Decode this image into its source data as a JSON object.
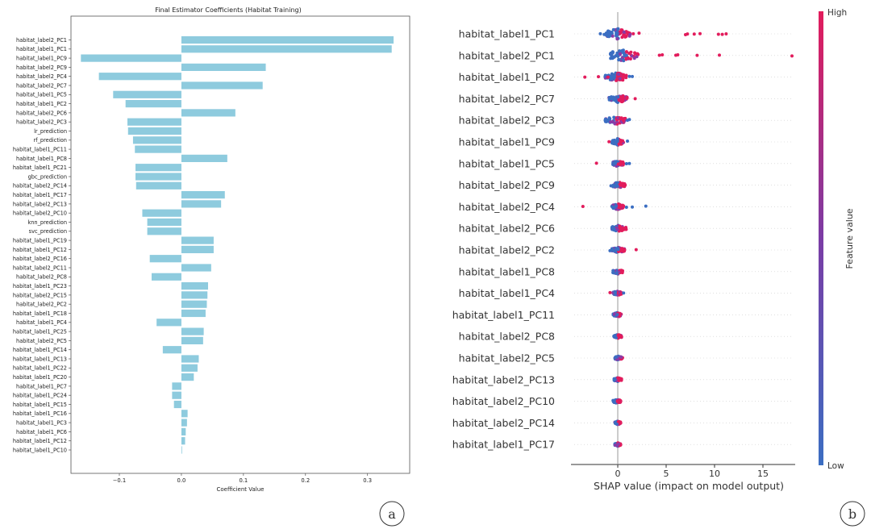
{
  "chart_data": [
    {
      "type": "bar",
      "orientation": "horizontal",
      "panel_label": "a",
      "title": "Final Estimator Coefficients (Habitat Training)",
      "xlabel": "Coefficient Value",
      "ylabel": "",
      "xlim": [
        -0.178,
        0.368
      ],
      "xticks": [
        -0.1,
        0.0,
        0.1,
        0.2,
        0.3
      ],
      "xtick_labels": [
        "−0.1",
        "0.0",
        "0.1",
        "0.2",
        "0.3"
      ],
      "bar_color": "#8ecbde",
      "categories": [
        "habitat_label2_PC1",
        "habitat_label1_PC1",
        "habitat_label1_PC9",
        "habitat_label2_PC9",
        "habitat_label2_PC4",
        "habitat_label2_PC7",
        "habitat_label1_PC5",
        "habitat_label1_PC2",
        "habitat_label2_PC6",
        "habitat_label2_PC3",
        "lr_prediction",
        "rf_prediction",
        "habitat_label1_PC11",
        "habitat_label1_PC8",
        "habitat_label1_PC21",
        "gbc_prediction",
        "habitat_label2_PC14",
        "habitat_label1_PC17",
        "habitat_label2_PC13",
        "habitat_label2_PC10",
        "knn_prediction",
        "svc_prediction",
        "habitat_label1_PC19",
        "habitat_label1_PC12",
        "habitat_label2_PC16",
        "habitat_label2_PC11",
        "habitat_label2_PC8",
        "habitat_label1_PC23",
        "habitat_label2_PC15",
        "habitat_label2_PC2",
        "habitat_label1_PC18",
        "habitat_label1_PC4",
        "habitat_label1_PC25",
        "habitat_label2_PC5",
        "habitat_label1_PC14",
        "habitat_label1_PC13",
        "habitat_label1_PC22",
        "habitat_label1_PC20",
        "habitat_label1_PC7",
        "habitat_label1_PC24",
        "habitat_label1_PC15",
        "habitat_label1_PC16",
        "habitat_label1_PC3",
        "habitat_label1_PC6",
        "habitat_label1_PC12",
        "habitat_label1_PC10"
      ],
      "values": [
        0.342,
        0.339,
        -0.162,
        0.136,
        -0.133,
        0.131,
        -0.11,
        -0.09,
        0.087,
        -0.087,
        -0.086,
        -0.078,
        -0.075,
        0.074,
        -0.074,
        -0.074,
        -0.073,
        0.07,
        0.064,
        -0.063,
        -0.055,
        -0.055,
        0.052,
        0.052,
        -0.051,
        0.048,
        -0.048,
        0.043,
        0.042,
        0.041,
        0.039,
        -0.04,
        0.036,
        0.035,
        -0.03,
        0.028,
        0.026,
        0.02,
        -0.015,
        -0.015,
        -0.012,
        0.01,
        0.009,
        0.007,
        0.006,
        0.001
      ]
    },
    {
      "type": "scatter",
      "subtype": "shap_beeswarm",
      "panel_label": "b",
      "xlabel": "SHAP value (impact on model output)",
      "xlim": [
        -4.8,
        18.3
      ],
      "xticks": [
        0,
        5,
        10,
        15
      ],
      "xtick_labels": [
        "0",
        "5",
        "10",
        "15"
      ],
      "colorbar": {
        "label": "Feature value",
        "high_label": "High",
        "low_label": "Low",
        "high_color": "#ff0052",
        "low_color": "#008bfb"
      },
      "features": [
        "habitat_label1_PC1",
        "habitat_label2_PC1",
        "habitat_label1_PC2",
        "habitat_label2_PC7",
        "habitat_label2_PC3",
        "habitat_label1_PC9",
        "habitat_label1_PC5",
        "habitat_label2_PC9",
        "habitat_label2_PC4",
        "habitat_label2_PC6",
        "habitat_label2_PC2",
        "habitat_label1_PC8",
        "habitat_label1_PC4",
        "habitat_label1_PC11",
        "habitat_label2_PC8",
        "habitat_label2_PC5",
        "habitat_label2_PC13",
        "habitat_label2_PC10",
        "habitat_label2_PC14",
        "habitat_label1_PC17"
      ],
      "distributions": [
        {
          "core_min": -1.2,
          "core_max": 1.3,
          "spread": 1.0,
          "outliers_high": [
            1.6,
            2.2,
            7.0,
            7.2,
            7.9,
            8.5,
            10.4,
            10.8,
            11.2
          ],
          "outliers_low": [
            -1.8,
            -1.4
          ]
        },
        {
          "core_min": -0.8,
          "core_max": 2.2,
          "spread": 1.0,
          "outliers_high": [
            4.3,
            4.6,
            6.0,
            6.2,
            8.2,
            10.5,
            18.0
          ],
          "outliers_low": [
            0.9
          ]
        },
        {
          "core_min": -1.3,
          "core_max": 0.9,
          "spread": 0.8,
          "outliers_high": [
            -3.4,
            -2.0,
            -1.0
          ],
          "outliers_low": [
            1.2,
            1.5
          ]
        },
        {
          "core_min": -0.9,
          "core_max": 1.0,
          "spread": 0.75,
          "outliers_high": [
            1.8
          ],
          "outliers_low": []
        },
        {
          "core_min": -1.3,
          "core_max": 0.8,
          "spread": 0.7,
          "outliers_high": [],
          "outliers_low": [
            1.0,
            1.2
          ]
        },
        {
          "core_min": -0.6,
          "core_max": 0.6,
          "spread": 0.6,
          "outliers_high": [
            -0.9
          ],
          "outliers_low": [
            1.0
          ]
        },
        {
          "core_min": -0.5,
          "core_max": 0.6,
          "spread": 0.55,
          "outliers_high": [
            -2.2
          ],
          "outliers_low": [
            0.9,
            1.2
          ]
        },
        {
          "core_min": -0.5,
          "core_max": 0.8,
          "spread": 0.55,
          "outliers_high": [],
          "outliers_low": [
            -0.7
          ]
        },
        {
          "core_min": -0.6,
          "core_max": 0.6,
          "spread": 0.55,
          "outliers_high": [
            -3.6
          ],
          "outliers_low": [
            0.9,
            1.5,
            2.9
          ]
        },
        {
          "core_min": -0.6,
          "core_max": 0.9,
          "spread": 0.55,
          "outliers_high": [],
          "outliers_low": []
        },
        {
          "core_min": -0.6,
          "core_max": 0.7,
          "spread": 0.5,
          "outliers_high": [
            1.9
          ],
          "outliers_low": [
            -0.8
          ]
        },
        {
          "core_min": -0.5,
          "core_max": 0.5,
          "spread": 0.45,
          "outliers_high": [],
          "outliers_low": []
        },
        {
          "core_min": -0.5,
          "core_max": 0.4,
          "spread": 0.4,
          "outliers_high": [
            -0.8
          ],
          "outliers_low": [
            0.6
          ]
        },
        {
          "core_min": -0.5,
          "core_max": 0.4,
          "spread": 0.4,
          "outliers_high": [],
          "outliers_low": []
        },
        {
          "core_min": -0.4,
          "core_max": 0.4,
          "spread": 0.35,
          "outliers_high": [],
          "outliers_low": []
        },
        {
          "core_min": -0.3,
          "core_max": 0.5,
          "spread": 0.35,
          "outliers_high": [],
          "outliers_low": []
        },
        {
          "core_min": -0.4,
          "core_max": 0.4,
          "spread": 0.35,
          "outliers_high": [],
          "outliers_low": []
        },
        {
          "core_min": -0.5,
          "core_max": 0.3,
          "spread": 0.35,
          "outliers_high": [],
          "outliers_low": []
        },
        {
          "core_min": -0.3,
          "core_max": 0.3,
          "spread": 0.3,
          "outliers_high": [],
          "outliers_low": []
        },
        {
          "core_min": -0.3,
          "core_max": 0.3,
          "spread": 0.3,
          "outliers_high": [],
          "outliers_low": []
        }
      ]
    }
  ]
}
